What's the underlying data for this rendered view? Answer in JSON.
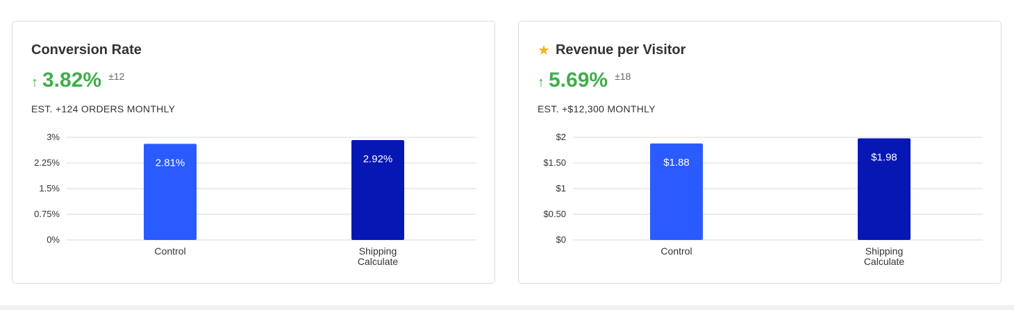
{
  "cards": [
    {
      "title": "Conversion Rate",
      "starred": false,
      "lift": "3.82%",
      "ci": "±12",
      "estimate": "EST. +124 ORDERS MONTHLY",
      "lift_icon": "arrow-up-icon"
    },
    {
      "title": "Revenue per Visitor",
      "starred": true,
      "star_icon": "star-icon",
      "lift": "5.69%",
      "ci": "±18",
      "estimate": "EST. +$12,300 MONTHLY",
      "lift_icon": "arrow-up-icon"
    }
  ],
  "colors": {
    "positive": "#3fae49",
    "control_bar": "#2a5bff",
    "variant_bar": "#0717b4",
    "star": "#f2b61c"
  },
  "chart_data": [
    {
      "type": "bar",
      "categories": [
        [
          "Control"
        ],
        [
          "Shipping",
          "Calculate"
        ]
      ],
      "values": [
        2.81,
        2.92
      ],
      "value_labels": [
        "2.81%",
        "2.92%"
      ],
      "yticks": [
        "0%",
        "0.75%",
        "1.5%",
        "2.25%",
        "3%"
      ],
      "ylim": [
        0,
        3
      ],
      "grid": true
    },
    {
      "type": "bar",
      "categories": [
        [
          "Control"
        ],
        [
          "Shipping",
          "Calculate"
        ]
      ],
      "values": [
        1.88,
        1.98
      ],
      "value_labels": [
        "$1.88",
        "$1.98"
      ],
      "yticks": [
        "$0",
        "$0.50",
        "$1",
        "$1.50",
        "$2"
      ],
      "ylim": [
        0,
        2
      ],
      "grid": true
    }
  ]
}
